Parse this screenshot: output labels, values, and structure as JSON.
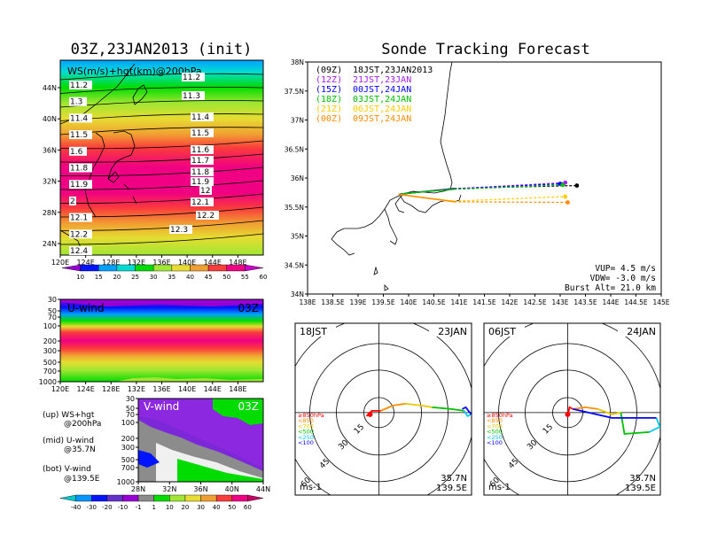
{
  "titles": {
    "left": "03Z,23JAN2013 (init)",
    "right": "Sonde Tracking Forecast"
  },
  "chart_data": [
    {
      "type": "heatmap",
      "panel": "WS-hgt-200hPa",
      "label": "WS(m/s)+hgt(km)@200hPa",
      "xticks": [
        "120E",
        "124E",
        "128E",
        "132E",
        "136E",
        "140E",
        "144E",
        "148E"
      ],
      "yticks": [
        "24N",
        "28N",
        "32N",
        "36N",
        "40N",
        "44N"
      ],
      "height_contours": [
        "11.2",
        "11.3",
        "11.4",
        "11.5",
        "11.6",
        "11.7",
        "11.8",
        "11.9",
        "12",
        "12.1",
        "12.2",
        "12.3",
        "12.4"
      ],
      "left_contour_labels": [
        "11.2",
        "1.3",
        "11.4",
        "11.5",
        "1.6",
        "11.8",
        "11.9",
        "2",
        "12.1",
        "12.2",
        "12.4"
      ],
      "right_contour_labels": [
        "11.2",
        "11.3",
        "11.4",
        "11.5",
        "11.6",
        "11.7",
        "11.8",
        "11.9",
        "12",
        "12.1",
        "12.2",
        "12.3"
      ],
      "colorbar": [
        "10",
        "15",
        "20",
        "25",
        "30",
        "35",
        "40",
        "45",
        "50",
        "55",
        "60"
      ]
    },
    {
      "type": "heatmap",
      "panel": "U-wind",
      "label": "U-wind",
      "time": "03Z",
      "yticks": [
        "30",
        "50",
        "70",
        "100",
        "200",
        "300",
        "500",
        "700",
        "1000"
      ],
      "xticks": [
        "120E",
        "124E",
        "128E",
        "132E",
        "136E",
        "140E",
        "144E",
        "148E"
      ]
    },
    {
      "type": "heatmap",
      "panel": "V-wind",
      "label": "V-wind",
      "time": "03Z",
      "yticks": [
        "30",
        "50",
        "70",
        "100",
        "200",
        "300",
        "500",
        "700",
        "1000"
      ],
      "xticks": [
        "28N",
        "32N",
        "36N",
        "40N",
        "44N"
      ],
      "colorbar": [
        "-40",
        "-30",
        "-20",
        "-10",
        "-1",
        "1",
        "10",
        "20",
        "30",
        "40",
        "50",
        "60"
      ]
    },
    {
      "type": "line",
      "panel": "sonde-trajectory-map",
      "xticks": [
        "138E",
        "138.5E",
        "139E",
        "139.5E",
        "140E",
        "140.5E",
        "141E",
        "141.5E",
        "142E",
        "142.5E",
        "143E",
        "143.5E",
        "144E",
        "144.5E",
        "145E"
      ],
      "yticks": [
        "34N",
        "34.5N",
        "35N",
        "35.5N",
        "36N",
        "36.5N",
        "37N",
        "37.5N",
        "38N"
      ],
      "series": [
        {
          "name": "(09Z)",
          "time": "18JST,23JAN2013",
          "color": "#000000",
          "end_lon": 143.33,
          "end_lat": 35.87
        },
        {
          "name": "(12Z)",
          "time": "21JST,23JAN",
          "color": "#a020f0",
          "end_lon": 143.1,
          "end_lat": 35.92
        },
        {
          "name": "(15Z)",
          "time": "00JST,24JAN",
          "color": "#0000ff",
          "end_lon": 143.0,
          "end_lat": 35.9
        },
        {
          "name": "(18Z)",
          "time": "03JST,24JAN",
          "color": "#00c000",
          "end_lon": 143.05,
          "end_lat": 35.88
        },
        {
          "name": "(21Z)",
          "time": "06JST,24JAN",
          "color": "#ffcc00",
          "end_lon": 143.1,
          "end_lat": 35.68
        },
        {
          "name": "(00Z)",
          "time": "09JST,24JAN",
          "color": "#ff8c00",
          "end_lon": 143.15,
          "end_lat": 35.58
        }
      ],
      "params": [
        "VUP= 4.5 m/s",
        "VDW= -3.0 m/s",
        "Burst Alt= 21.0 km"
      ]
    },
    {
      "type": "line",
      "panel": "polar-18JST",
      "time_label": "18JST",
      "date_label": "23JAN",
      "ring_labels": [
        "15",
        "30",
        "45",
        "60"
      ],
      "unit": "ms-1",
      "location": [
        "35.7N",
        "139.5E"
      ]
    },
    {
      "type": "line",
      "panel": "polar-06JST",
      "time_label": "06JST",
      "date_label": "24JAN",
      "ring_labels": [
        "15",
        "30",
        "45",
        "60"
      ],
      "unit": "ms-1",
      "location": [
        "35.7N",
        "139.5E"
      ]
    }
  ],
  "pressure_legend": [
    "≥850hPa",
    "<850",
    "<700",
    "<500",
    "<250",
    "<100"
  ],
  "pressure_colors": [
    "#ff0000",
    "#ff8c00",
    "#e8c800",
    "#00c000",
    "#00c8e8",
    "#0000ff"
  ],
  "notes": {
    "up": "(up) WS+hgt",
    "up2": "@200hPa",
    "mid": "(mid) U-wind",
    "mid2": "@35.7N",
    "bot": "(bot) V-wind",
    "bot2": "@139.5E"
  },
  "ws_colors": [
    "#9600d2",
    "#0014ff",
    "#00a0ff",
    "#00dcd2",
    "#00dc00",
    "#a0e632",
    "#e6dc32",
    "#f0a032",
    "#fa3c3c",
    "#f00082",
    "#c800c8"
  ]
}
